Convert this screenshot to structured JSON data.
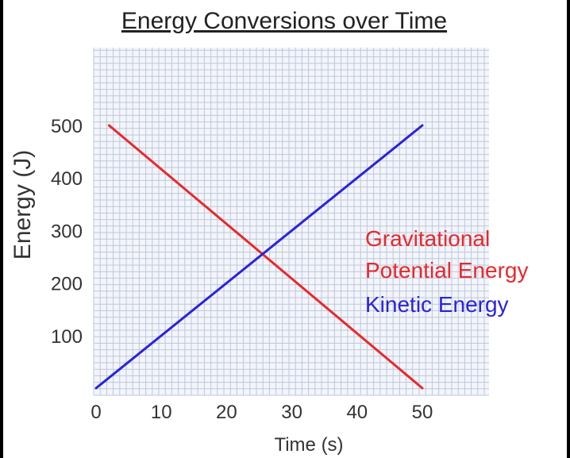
{
  "chart_data": {
    "type": "line",
    "title": "Energy Conversions over Time",
    "xlabel": "Time (s)",
    "ylabel": "Energy (J)",
    "x_ticks": [
      "0",
      "10",
      "20",
      "30",
      "40",
      "50"
    ],
    "y_ticks": [
      "100",
      "200",
      "300",
      "400",
      "500"
    ],
    "xlim": [
      0,
      60
    ],
    "ylim": [
      0,
      620
    ],
    "grid": true,
    "legend_placement": "right",
    "legend_lines": [
      {
        "text": "Gravitational",
        "color": "#e8282b"
      },
      {
        "text": "Potential Energy",
        "color": "#e8282b"
      },
      {
        "text": "Kinetic Energy",
        "color": "#2a22e0"
      }
    ],
    "series": [
      {
        "color": "#e8282b",
        "x": [
          2,
          50
        ],
        "y": [
          500,
          0
        ]
      },
      {
        "color": "#2a22e0",
        "x": [
          0,
          50
        ],
        "y": [
          0,
          500
        ]
      }
    ]
  }
}
